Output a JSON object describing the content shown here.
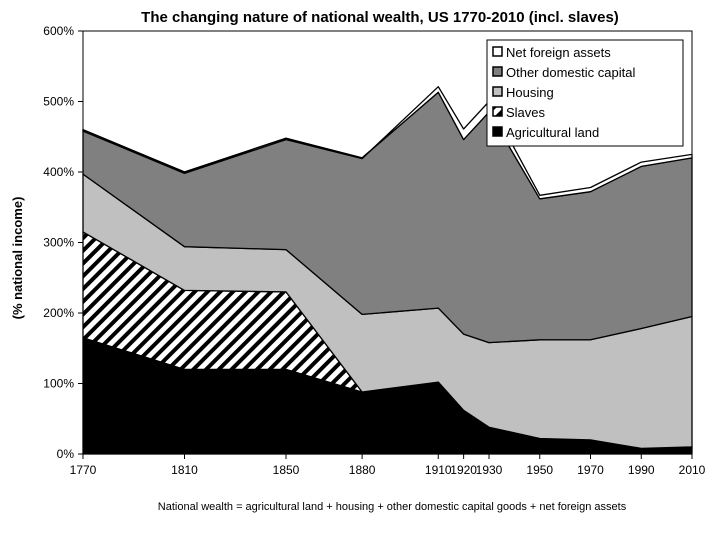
{
  "chart_data": {
    "type": "area",
    "title": "The changing nature of national wealth, US 1770-2010 (incl. slaves)",
    "ylabel": "(% national income)",
    "note": "National wealth = agricultural land + housing + other domestic capital goods + net foreign assets",
    "x": [
      1770,
      1810,
      1850,
      1880,
      1910,
      1920,
      1930,
      1950,
      1970,
      1990,
      2010
    ],
    "x_tick_labels": [
      "1770",
      "1810",
      "1850",
      "1880",
      "1910",
      "1920",
      "1930",
      "1950",
      "1970",
      "1990",
      "2010"
    ],
    "ylim": [
      0,
      600
    ],
    "y_ticks": [
      0,
      100,
      200,
      300,
      400,
      500,
      600
    ],
    "y_tick_labels": [
      "0%",
      "100%",
      "200%",
      "300%",
      "400%",
      "500%",
      "600%"
    ],
    "stacked": true,
    "series": [
      {
        "name": "Agricultural land",
        "fill": "solid",
        "color": "#000000",
        "values": [
          165,
          120,
          120,
          88,
          102,
          62,
          38,
          22,
          20,
          8,
          10
        ]
      },
      {
        "name": "Slaves",
        "fill": "hatch",
        "color": "#000000",
        "values": [
          150,
          112,
          110,
          0,
          0,
          0,
          0,
          0,
          0,
          0,
          0
        ]
      },
      {
        "name": "Housing",
        "fill": "solid",
        "color": "#c0c0c0",
        "values": [
          82,
          62,
          60,
          110,
          105,
          108,
          120,
          140,
          142,
          170,
          185
        ]
      },
      {
        "name": "Other domestic capital",
        "fill": "solid",
        "color": "#808080",
        "values": [
          63,
          106,
          158,
          222,
          306,
          276,
          327,
          200,
          210,
          230,
          225
        ]
      },
      {
        "name": "Net foreign assets",
        "fill": "solid",
        "color": "#ffffff",
        "values": [
          -2,
          -2,
          -2,
          -1,
          8,
          15,
          15,
          5,
          6,
          6,
          5
        ]
      }
    ],
    "legend": {
      "position": "top-right",
      "order": [
        "Net foreign assets",
        "Other domestic capital",
        "Housing",
        "Slaves",
        "Agricultural land"
      ]
    }
  }
}
